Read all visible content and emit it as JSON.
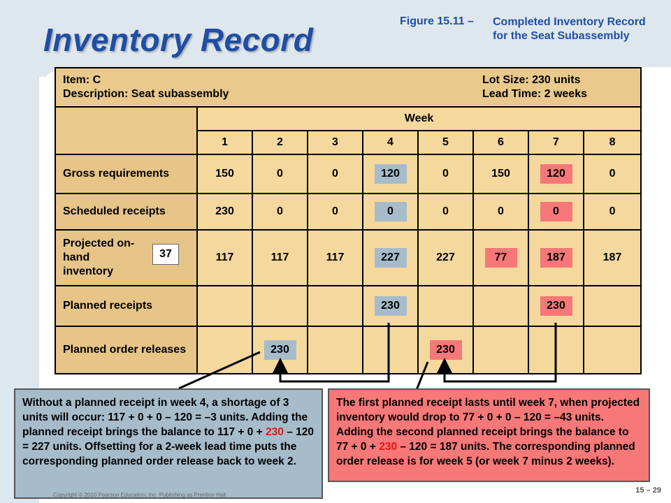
{
  "title": "Inventory Record",
  "figure": {
    "number": "Figure 15.11 –",
    "caption": "Completed Inventory Record for the Seat Subassembly"
  },
  "header": {
    "item": "Item: C",
    "description": "Description: Seat subassembly",
    "lot_size": "Lot Size: 230 units",
    "lead_time": "Lead Time: 2 weeks",
    "week_label": "Week",
    "weeks": [
      "1",
      "2",
      "3",
      "4",
      "5",
      "6",
      "7",
      "8"
    ]
  },
  "rows": {
    "gross": {
      "label": "Gross requirements",
      "values": [
        "150",
        "0",
        "0",
        "120",
        "0",
        "150",
        "120",
        "0"
      ]
    },
    "scheduled": {
      "label": "Scheduled receipts",
      "values": [
        "230",
        "0",
        "0",
        "0",
        "0",
        "0",
        "0",
        "0"
      ]
    },
    "onhand": {
      "label": "Projected on-hand inventory",
      "initial": "37",
      "values": [
        "117",
        "117",
        "117",
        "227",
        "227",
        "77",
        "187",
        "187"
      ]
    },
    "planned_receipts": {
      "label": "Planned receipts",
      "values": [
        "",
        "",
        "",
        "230",
        "",
        "",
        "230",
        ""
      ]
    },
    "planned_releases": {
      "label": "Planned order releases",
      "values": [
        "",
        "230",
        "",
        "",
        "230",
        "",
        "",
        ""
      ]
    }
  },
  "colors": {
    "blue_highlight": "#a6bccb",
    "red_highlight": "#f67878",
    "title_blue": "#1f4ea3",
    "table_fill": "#f5d89e",
    "label_fill": "#e7c487"
  },
  "note_a": {
    "text_1": "Without a planned receipt in week 4, a shortage of 3 units will occur: 117 + 0 + 0 – 120 = –3 units. Adding the planned receipt brings the balance to 117 + 0 + ",
    "highlight": "230",
    "text_2": " – 120 = 227 units. Offsetting for a 2-week lead time puts the corresponding planned order release back to week 2."
  },
  "note_b": {
    "text_1": "The first planned receipt lasts until week 7, when projected inventory would drop to 77 + 0 + 0 – 120 = –43 units. Adding the second planned receipt brings the balance to 77 + 0 + ",
    "highlight": "230",
    "text_2": " – 120 = 187 units. The corresponding planned order release is for week 5 (or week 7 minus 2 weeks)."
  },
  "footer": "Copyright © 2010 Pearson Education, Inc. Publishing as Prentice Hall",
  "page_number": "15 – 29"
}
